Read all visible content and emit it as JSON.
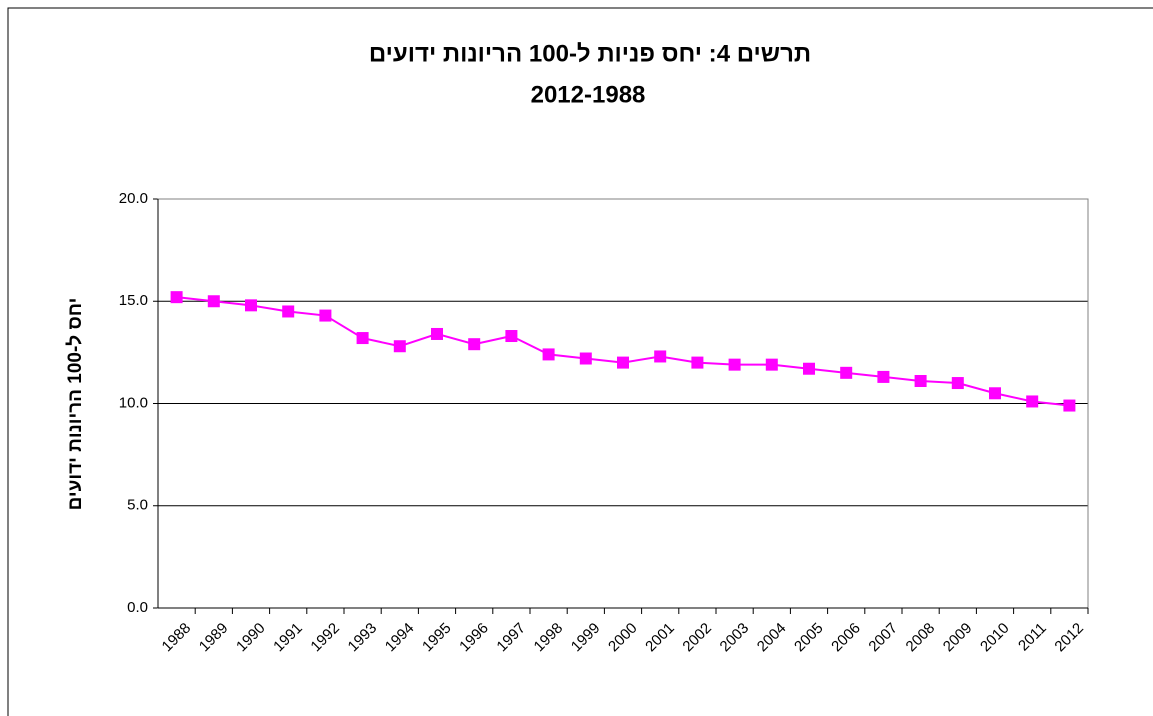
{
  "chart_data": {
    "type": "line",
    "title": "תרשים 4: יחס פניות ל-100 הריונות ידועים",
    "subtitle": "2012-1988",
    "y_label": "יחס ל-100 הריונות ידועים",
    "categories": [
      "1988",
      "1989",
      "1990",
      "1991",
      "1992",
      "1993",
      "1994",
      "1995",
      "1996",
      "1997",
      "1998",
      "1999",
      "2000",
      "2001",
      "2002",
      "2003",
      "2004",
      "2005",
      "2006",
      "2007",
      "2008",
      "2009",
      "2010",
      "2011",
      "2012"
    ],
    "series": [
      {
        "name": "יחס",
        "color": "#ff00ff",
        "values": [
          15.2,
          15.0,
          14.8,
          14.5,
          14.3,
          13.2,
          12.8,
          13.4,
          12.9,
          13.3,
          12.4,
          12.2,
          12.0,
          12.3,
          12.0,
          11.9,
          11.9,
          11.7,
          11.5,
          11.3,
          11.1,
          11.0,
          10.5,
          10.1,
          9.9
        ]
      }
    ],
    "ylim": [
      0,
      20
    ],
    "yticks": [
      {
        "value": 0,
        "label": "0.0"
      },
      {
        "value": 5,
        "label": "5.0"
      },
      {
        "value": 10,
        "label": "10.0"
      },
      {
        "value": 15,
        "label": "15.0"
      },
      {
        "value": 20,
        "label": "20.0"
      }
    ],
    "grid": true
  }
}
